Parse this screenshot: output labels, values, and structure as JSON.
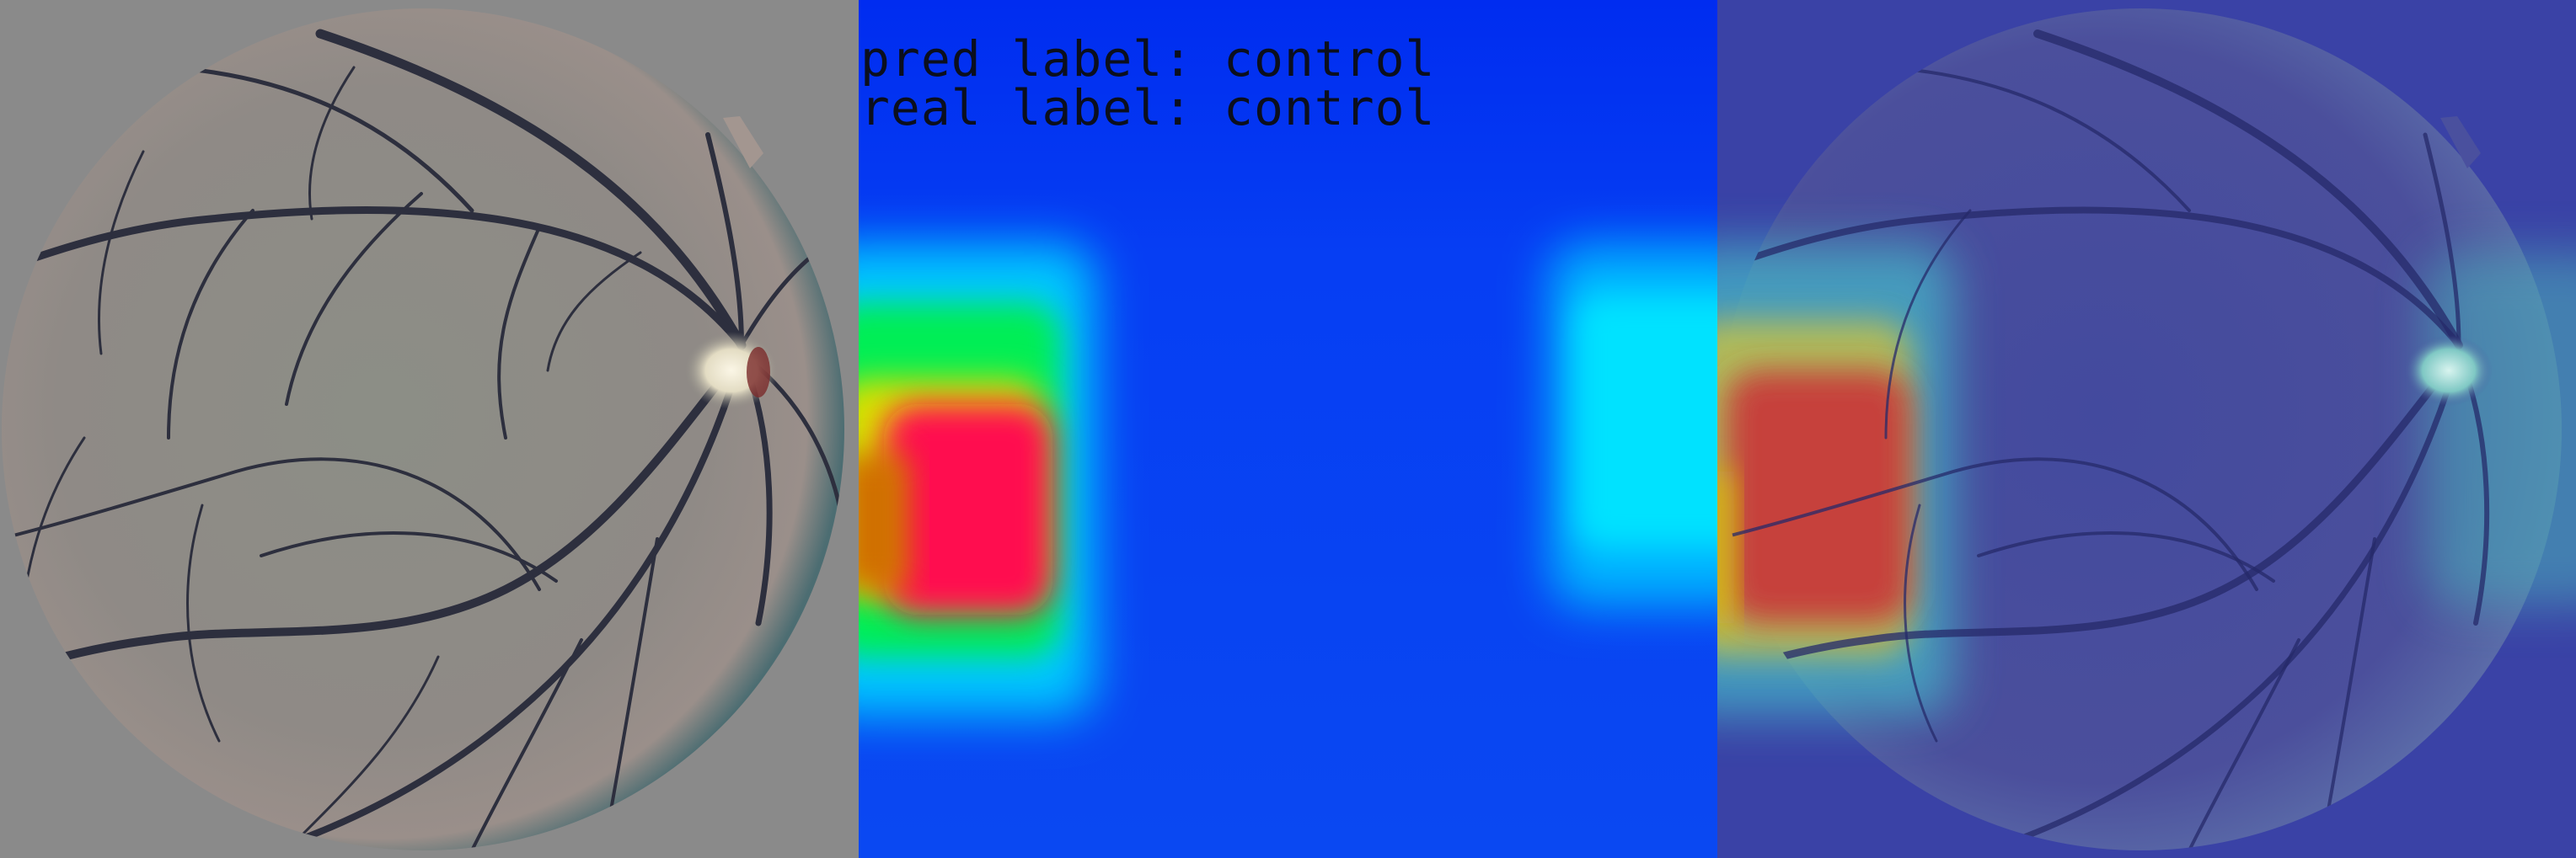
{
  "labels": {
    "pred": "pred label: control",
    "real": "real label: control"
  },
  "panels": [
    {
      "name": "fundus-image"
    },
    {
      "name": "attention-heatmap"
    },
    {
      "name": "heatmap-overlay"
    }
  ],
  "colors": {
    "fundus_background": "#8a8a8a",
    "fundus_disc_tint": "#8f9086",
    "vessel": "#2d2f3e",
    "heatmap_base": "#0a3ff5",
    "heatmap_cold_top": "#002cf0",
    "heatmap_cyan": "#00e2ff",
    "heatmap_green": "#00ee55",
    "heatmap_red": "#ff1050",
    "overlay_base": "#3a42a6",
    "overlay_hot": "#c83a3a"
  }
}
